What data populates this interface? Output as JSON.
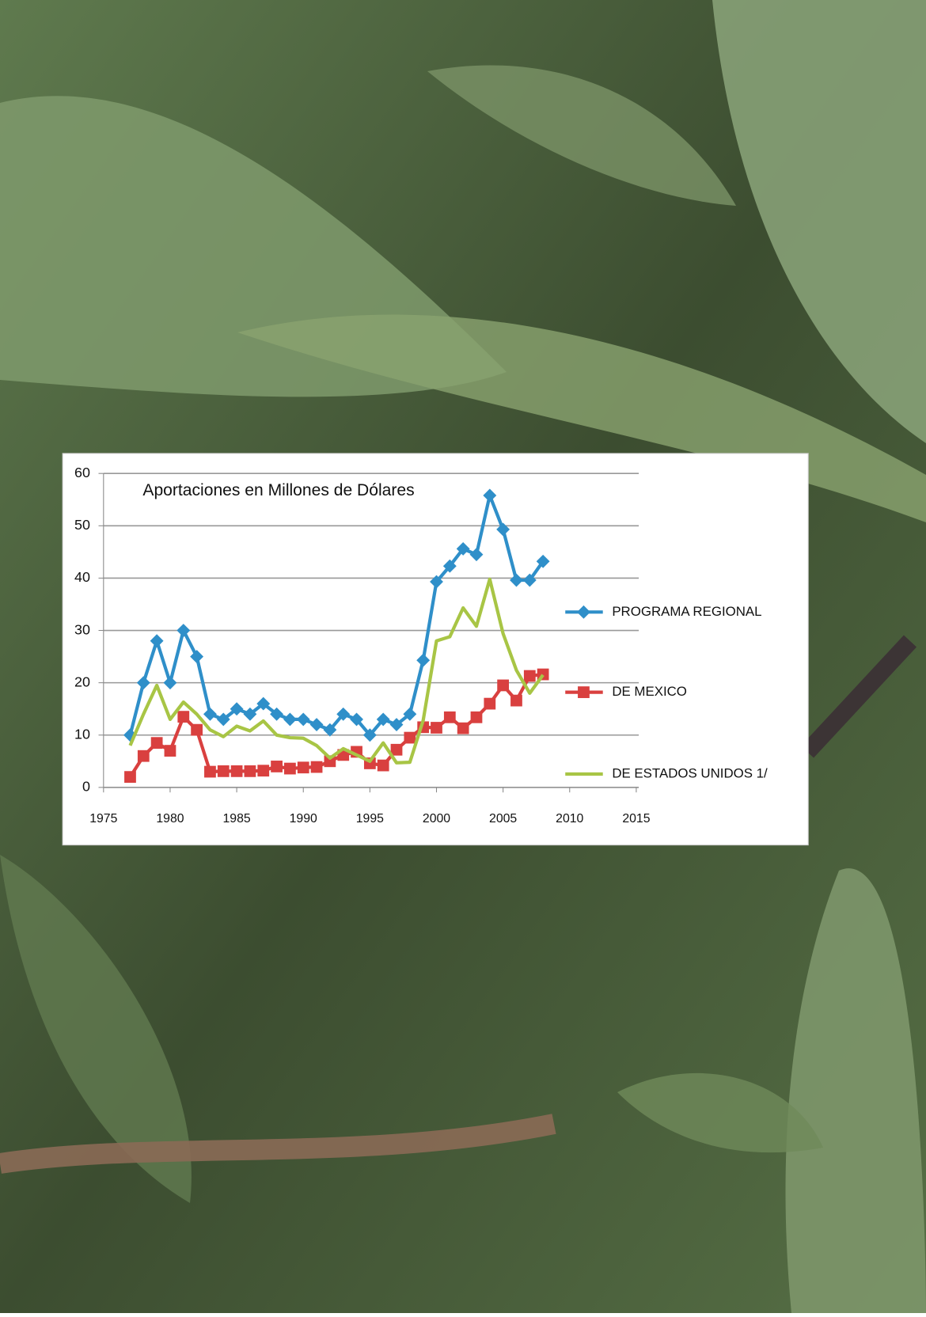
{
  "chart_data": {
    "type": "line",
    "title": "Aportaciones en Millones de Dólares",
    "x": [
      1977,
      1978,
      1979,
      1980,
      1981,
      1982,
      1983,
      1984,
      1985,
      1986,
      1987,
      1988,
      1989,
      1990,
      1991,
      1992,
      1993,
      1994,
      1995,
      1996,
      1997,
      1998,
      1999,
      2000,
      2001,
      2002,
      2003,
      2004,
      2005,
      2006,
      2007,
      2008
    ],
    "series": [
      {
        "name": "PROGRAMA REGIONAL",
        "color": "#2f8fc9",
        "marker": "diamond",
        "values": [
          10,
          20,
          28,
          20,
          30,
          25,
          14,
          13,
          15,
          14,
          16,
          14,
          13,
          13,
          12,
          11,
          14,
          13,
          10,
          13,
          12,
          14,
          24.3,
          39.3,
          42.3,
          45.6,
          44.5,
          55.8,
          49.3,
          39.6,
          39.6,
          43.2
        ]
      },
      {
        "name": "DE MEXICO",
        "color": "#d9403f",
        "marker": "square",
        "values": [
          2,
          6,
          8.5,
          7,
          13.5,
          11,
          3,
          3.1,
          3.1,
          3.1,
          3.2,
          4,
          3.6,
          3.8,
          3.9,
          5,
          6.2,
          6.8,
          4.6,
          4.2,
          7.2,
          9.5,
          11.5,
          11.4,
          13.4,
          11.3,
          13.4,
          16,
          19.5,
          16.6,
          21.3,
          21.6
        ]
      },
      {
        "name": "DE ESTADOS UNIDOS 1/",
        "color": "#a8c545",
        "marker": "none",
        "values": [
          8,
          14,
          19.5,
          13,
          16.3,
          14,
          11,
          9.7,
          11.7,
          10.8,
          12.7,
          10,
          9.5,
          9.4,
          8,
          5.6,
          7.4,
          6.2,
          5,
          8.5,
          4.7,
          4.8,
          12.8,
          28,
          28.8,
          34.3,
          30.8,
          39.8,
          29.4,
          22.4,
          18,
          21.5
        ]
      }
    ],
    "xlim": [
      1975,
      2015
    ],
    "xticks": [
      1975,
      1980,
      1985,
      1990,
      1995,
      2000,
      2005,
      2010,
      2015
    ],
    "ylim": [
      0,
      60
    ],
    "yticks": [
      0,
      10,
      20,
      30,
      40,
      50,
      60
    ],
    "grid": true,
    "legend": "right"
  }
}
